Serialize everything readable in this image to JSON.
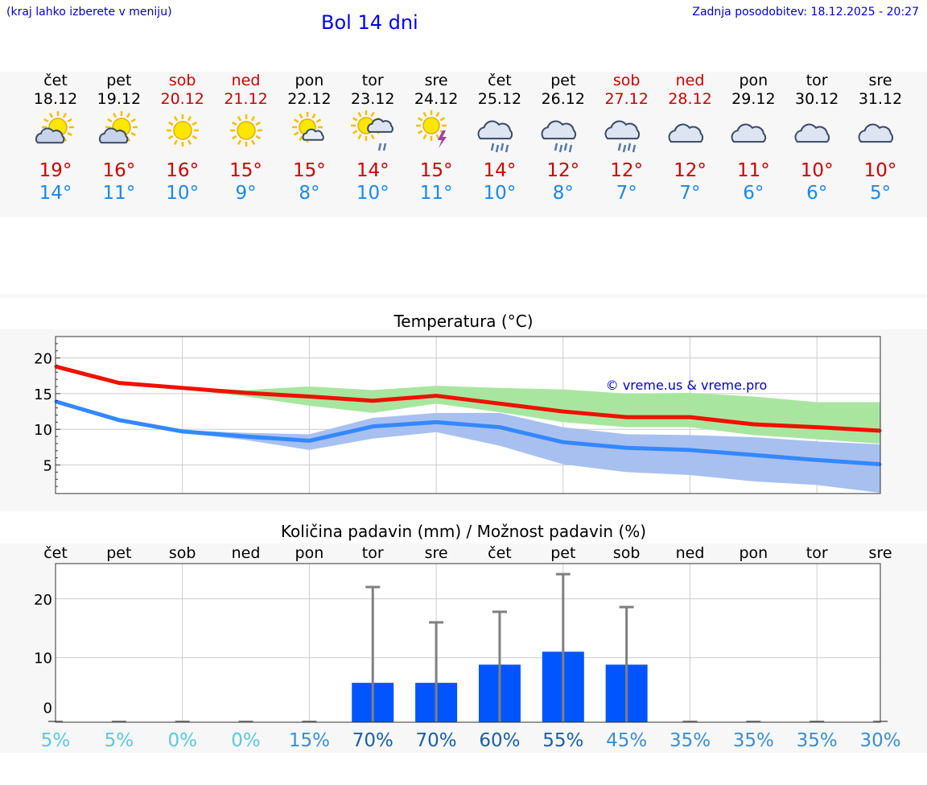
{
  "header": {
    "menu_hint": "(kraj lahko izberete v meniju)",
    "title": "Bol 14 dni",
    "last_update": "Zadnja posodobitev: 18.12.2025 - 20:27"
  },
  "forecast": {
    "days": [
      {
        "name": "čet",
        "date": "18.12",
        "weekend": false,
        "icon": "sun-cloud-icon",
        "max": "19°",
        "min": "14°"
      },
      {
        "name": "pet",
        "date": "19.12",
        "weekend": false,
        "icon": "sun-cloud-icon",
        "max": "16°",
        "min": "11°"
      },
      {
        "name": "sob",
        "date": "20.12",
        "weekend": true,
        "icon": "sun-icon",
        "max": "16°",
        "min": "10°"
      },
      {
        "name": "ned",
        "date": "21.12",
        "weekend": true,
        "icon": "sun-icon",
        "max": "15°",
        "min": "9°"
      },
      {
        "name": "pon",
        "date": "22.12",
        "weekend": false,
        "icon": "sun-small-cloud-icon",
        "max": "15°",
        "min": "8°"
      },
      {
        "name": "tor",
        "date": "23.12",
        "weekend": false,
        "icon": "sun-rain-icon",
        "max": "14°",
        "min": "10°"
      },
      {
        "name": "sre",
        "date": "24.12",
        "weekend": false,
        "icon": "sun-thunder-icon",
        "max": "15°",
        "min": "11°"
      },
      {
        "name": "čet",
        "date": "25.12",
        "weekend": false,
        "icon": "rain-cloud-icon",
        "max": "14°",
        "min": "10°"
      },
      {
        "name": "pet",
        "date": "26.12",
        "weekend": false,
        "icon": "rain-cloud-icon",
        "max": "12°",
        "min": "8°"
      },
      {
        "name": "sob",
        "date": "27.12",
        "weekend": true,
        "icon": "rain-cloud-icon",
        "max": "12°",
        "min": "7°"
      },
      {
        "name": "ned",
        "date": "28.12",
        "weekend": true,
        "icon": "cloud-icon",
        "max": "12°",
        "min": "7°"
      },
      {
        "name": "pon",
        "date": "29.12",
        "weekend": false,
        "icon": "cloud-icon",
        "max": "11°",
        "min": "6°"
      },
      {
        "name": "tor",
        "date": "30.12",
        "weekend": false,
        "icon": "cloud-icon",
        "max": "10°",
        "min": "6°"
      },
      {
        "name": "sre",
        "date": "31.12",
        "weekend": false,
        "icon": "cloud-icon",
        "max": "10°",
        "min": "5°"
      }
    ]
  },
  "colors": {
    "max": "#ee1100",
    "min": "#3388ff",
    "max_band": "#a8e6a0",
    "min_band": "#a8c0f0",
    "overlap": "#7cc4a4",
    "bar": "#0055ff",
    "whisker": "#808080",
    "weekend": "#cc0000"
  },
  "chart_data": [
    {
      "type": "line",
      "title": "Temperatura (°C)",
      "watermark": "© vreme.us & vreme.pro",
      "x": [
        0,
        1,
        2,
        3,
        4,
        5,
        6,
        7,
        8,
        9,
        10,
        11,
        12,
        13
      ],
      "ylim": [
        1,
        23
      ],
      "yticks": [
        5,
        10,
        15,
        20
      ],
      "series": [
        {
          "name": "max",
          "values": [
            18.8,
            16.5,
            15.8,
            15.1,
            14.6,
            14.0,
            14.7,
            13.6,
            12.5,
            11.7,
            11.7,
            10.7,
            10.3,
            9.8
          ]
        },
        {
          "name": "min",
          "values": [
            13.9,
            11.3,
            9.7,
            9.0,
            8.4,
            10.4,
            11.0,
            10.3,
            8.2,
            7.4,
            7.1,
            6.4,
            5.7,
            5.1
          ]
        },
        {
          "name": "max_band_upper",
          "values": [
            18.8,
            16.7,
            15.9,
            15.5,
            16.0,
            15.5,
            16.1,
            15.8,
            15.6,
            15.0,
            15.1,
            14.6,
            13.8,
            13.8
          ]
        },
        {
          "name": "max_band_lower",
          "values": [
            18.8,
            16.3,
            15.6,
            14.6,
            13.3,
            12.3,
            13.6,
            12.4,
            11.0,
            10.3,
            10.3,
            9.2,
            8.6,
            8.0
          ]
        },
        {
          "name": "min_band_upper",
          "values": [
            13.9,
            11.5,
            9.9,
            9.5,
            9.3,
            11.6,
            12.3,
            12.3,
            10.3,
            9.3,
            9.2,
            8.9,
            8.3,
            7.9
          ]
        },
        {
          "name": "min_band_lower",
          "values": [
            13.9,
            11.0,
            9.5,
            8.5,
            7.1,
            8.7,
            9.6,
            7.7,
            5.1,
            4.0,
            3.6,
            2.7,
            2.2,
            1.1
          ]
        }
      ]
    },
    {
      "type": "bar",
      "title": "Količina padavin (mm) / Možnost padavin (%)",
      "categories": [
        "čet",
        "pet",
        "sob",
        "ned",
        "pon",
        "tor",
        "sre",
        "čet",
        "pet",
        "sob",
        "ned",
        "pon",
        "tor",
        "sre"
      ],
      "ylim": [
        -1,
        26
      ],
      "yticks": [
        0,
        10,
        20
      ],
      "values": [
        0,
        0,
        0,
        0,
        0,
        5.7,
        5.7,
        8.8,
        11.0,
        8.8,
        0,
        0,
        0,
        0
      ],
      "error_upper": [
        0,
        0,
        0,
        0,
        0,
        22.0,
        16.0,
        17.8,
        24.2,
        18.6,
        0,
        0,
        0,
        0
      ],
      "probability": [
        "5%",
        "5%",
        "0%",
        "0%",
        "15%",
        "70%",
        "70%",
        "60%",
        "55%",
        "45%",
        "35%",
        "35%",
        "35%",
        "30%"
      ]
    }
  ]
}
